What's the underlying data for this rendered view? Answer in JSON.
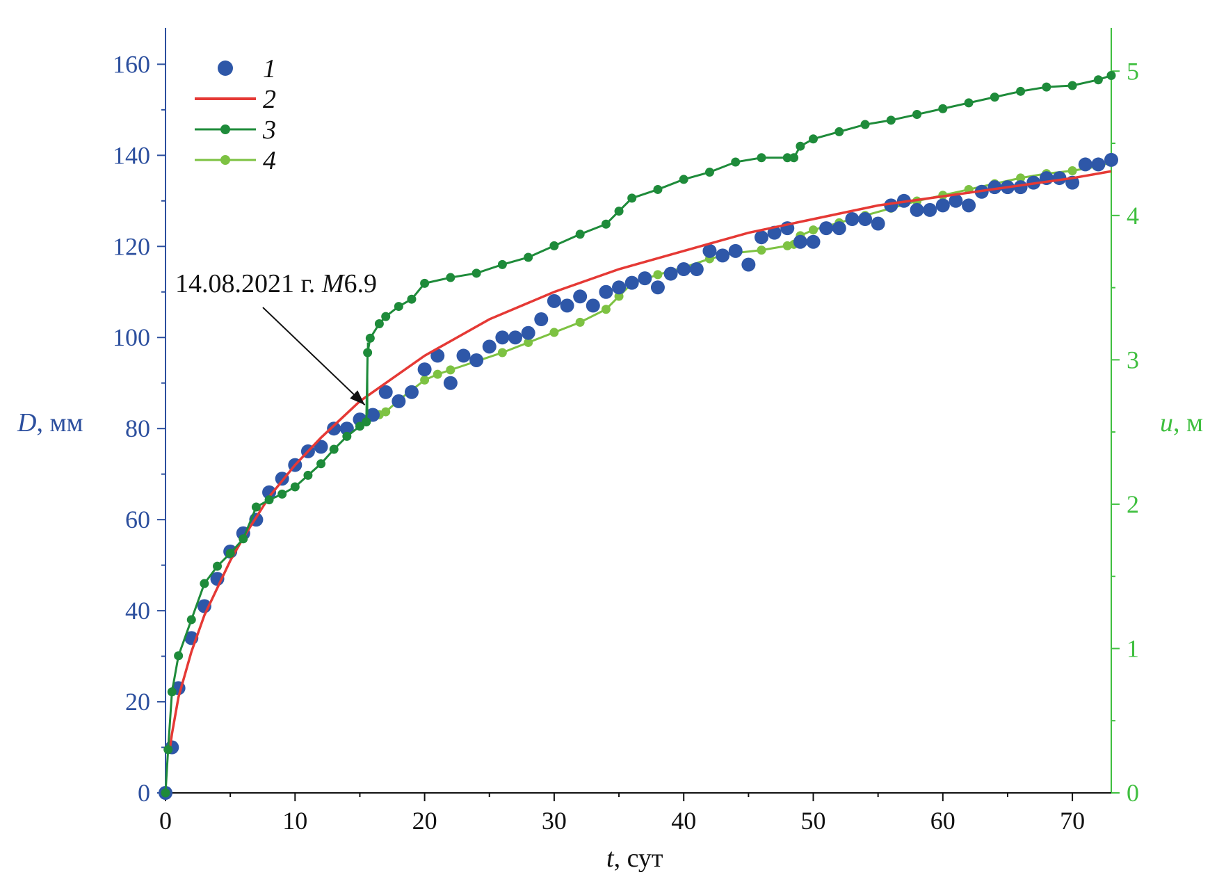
{
  "chart_data": {
    "type": "scatter",
    "title": "",
    "x_axis": {
      "label_italic": "t",
      "label_rest": ", сут",
      "range": [
        0,
        73
      ],
      "ticks": [
        0,
        10,
        20,
        30,
        40,
        50,
        60,
        70
      ],
      "tick_labels": [
        "0",
        "10",
        "20",
        "30",
        "40",
        "50",
        "60",
        "70"
      ]
    },
    "y_left": {
      "label_italic": "D",
      "label_rest": ", мм",
      "range": [
        0,
        168
      ],
      "ticks": [
        0,
        20,
        40,
        60,
        80,
        100,
        120,
        140,
        160
      ],
      "tick_labels": [
        "0",
        "20",
        "40",
        "60",
        "80",
        "100",
        "120",
        "140",
        "160"
      ],
      "color": "#2c4f9e"
    },
    "y_right": {
      "label_italic": "u",
      "label_rest": ", м",
      "range": [
        0,
        5.3
      ],
      "ticks": [
        0,
        1,
        2,
        3,
        4,
        5
      ],
      "tick_labels": [
        "0",
        "1",
        "2",
        "3",
        "4",
        "5"
      ],
      "color": "#3fbf3f"
    },
    "legend": {
      "placement": "top-left",
      "entries": [
        {
          "label": "1",
          "marker": "dot",
          "color": "#2e57a8"
        },
        {
          "label": "2",
          "marker": "line",
          "color": "#e53935"
        },
        {
          "label": "3",
          "marker": "line-dot",
          "color": "#1e8b3a"
        },
        {
          "label": "4",
          "marker": "line-dot",
          "color": "#7dc242"
        }
      ]
    },
    "annotation": {
      "text_date": "14.08.2021 г. ",
      "text_m_italic": "M",
      "text_mag": "6.9",
      "x": 15.6
    },
    "series": [
      {
        "name": "1",
        "axis": "left",
        "style": "dots",
        "color": "#2e57a8",
        "x": [
          0,
          0.5,
          1,
          2,
          3,
          4,
          5,
          6,
          7,
          8,
          9,
          10,
          11,
          12,
          13,
          14,
          15,
          16,
          17,
          18,
          19,
          20,
          21,
          22,
          23,
          24,
          25,
          26,
          27,
          28,
          29,
          30,
          31,
          32,
          33,
          34,
          35,
          36,
          37,
          38,
          39,
          40,
          41,
          42,
          43,
          44,
          45,
          46,
          47,
          48,
          49,
          50,
          51,
          52,
          53,
          54,
          55,
          56,
          57,
          58,
          59,
          60,
          61,
          62,
          63,
          64,
          65,
          66,
          67,
          68,
          69,
          70,
          71,
          72,
          73
        ],
        "y": [
          0,
          10,
          23,
          34,
          41,
          47,
          53,
          57,
          60,
          66,
          69,
          72,
          75,
          76,
          80,
          80,
          82,
          83,
          88,
          86,
          88,
          93,
          96,
          90,
          96,
          95,
          98,
          100,
          100,
          101,
          104,
          108,
          107,
          109,
          107,
          110,
          111,
          112,
          113,
          111,
          114,
          115,
          115,
          119,
          118,
          119,
          116,
          122,
          123,
          124,
          121,
          121,
          124,
          124,
          126,
          126,
          125,
          129,
          130,
          128,
          128,
          129,
          130,
          129,
          132,
          133,
          133,
          133,
          134,
          135,
          135,
          134,
          138,
          138,
          139
        ]
      },
      {
        "name": "2",
        "axis": "left",
        "style": "line",
        "color": "#e53935",
        "x": [
          0.3,
          0.5,
          1,
          2,
          3,
          4,
          5,
          6,
          8,
          10,
          12,
          15,
          20,
          25,
          30,
          35,
          40,
          45,
          50,
          55,
          60,
          65,
          70,
          73
        ],
        "y": [
          9,
          13,
          21,
          31,
          39,
          45,
          51,
          56,
          65,
          72,
          78,
          86,
          96,
          104,
          110,
          115,
          119,
          123,
          126,
          129,
          131,
          133,
          135,
          136.5
        ]
      },
      {
        "name": "3",
        "axis": "right",
        "style": "line-dots",
        "color": "#1e8b3a",
        "x": [
          0,
          0.2,
          0.5,
          1,
          2,
          3,
          4,
          5,
          6,
          7,
          8,
          9,
          10,
          11,
          12,
          13,
          14,
          15,
          15.5,
          15.6,
          15.8,
          16.5,
          17,
          18,
          19,
          20,
          22,
          24,
          26,
          28,
          30,
          32,
          34,
          35,
          36,
          38,
          40,
          42,
          44,
          46,
          48,
          48.5,
          49,
          50,
          52,
          54,
          56,
          58,
          60,
          62,
          64,
          66,
          68,
          70,
          72,
          73
        ],
        "y": [
          0,
          0.3,
          0.7,
          0.95,
          1.2,
          1.45,
          1.57,
          1.66,
          1.76,
          1.98,
          2.03,
          2.07,
          2.12,
          2.2,
          2.28,
          2.38,
          2.47,
          2.54,
          2.57,
          3.05,
          3.15,
          3.25,
          3.3,
          3.37,
          3.42,
          3.53,
          3.57,
          3.6,
          3.66,
          3.71,
          3.79,
          3.87,
          3.94,
          4.03,
          4.12,
          4.18,
          4.25,
          4.3,
          4.37,
          4.4,
          4.4,
          4.4,
          4.48,
          4.53,
          4.58,
          4.63,
          4.66,
          4.7,
          4.74,
          4.78,
          4.82,
          4.86,
          4.89,
          4.9,
          4.94,
          4.97
        ]
      },
      {
        "name": "4",
        "axis": "right",
        "style": "line-dots",
        "color": "#7dc242",
        "x": [
          16.5,
          17,
          18,
          19,
          20,
          21,
          22,
          24,
          26,
          28,
          30,
          32,
          34,
          35,
          36,
          38,
          40,
          42,
          44,
          46,
          48,
          48.5,
          49,
          50,
          52,
          54,
          56,
          58,
          60,
          62,
          64,
          66,
          68,
          70,
          72,
          73
        ],
        "y": [
          2.62,
          2.64,
          2.72,
          2.79,
          2.86,
          2.9,
          2.93,
          2.99,
          3.05,
          3.12,
          3.19,
          3.26,
          3.35,
          3.44,
          3.53,
          3.59,
          3.64,
          3.7,
          3.74,
          3.76,
          3.79,
          3.8,
          3.86,
          3.9,
          3.95,
          4.0,
          4.05,
          4.1,
          4.14,
          4.18,
          4.22,
          4.26,
          4.29,
          4.31,
          4.34,
          4.37
        ]
      }
    ]
  }
}
